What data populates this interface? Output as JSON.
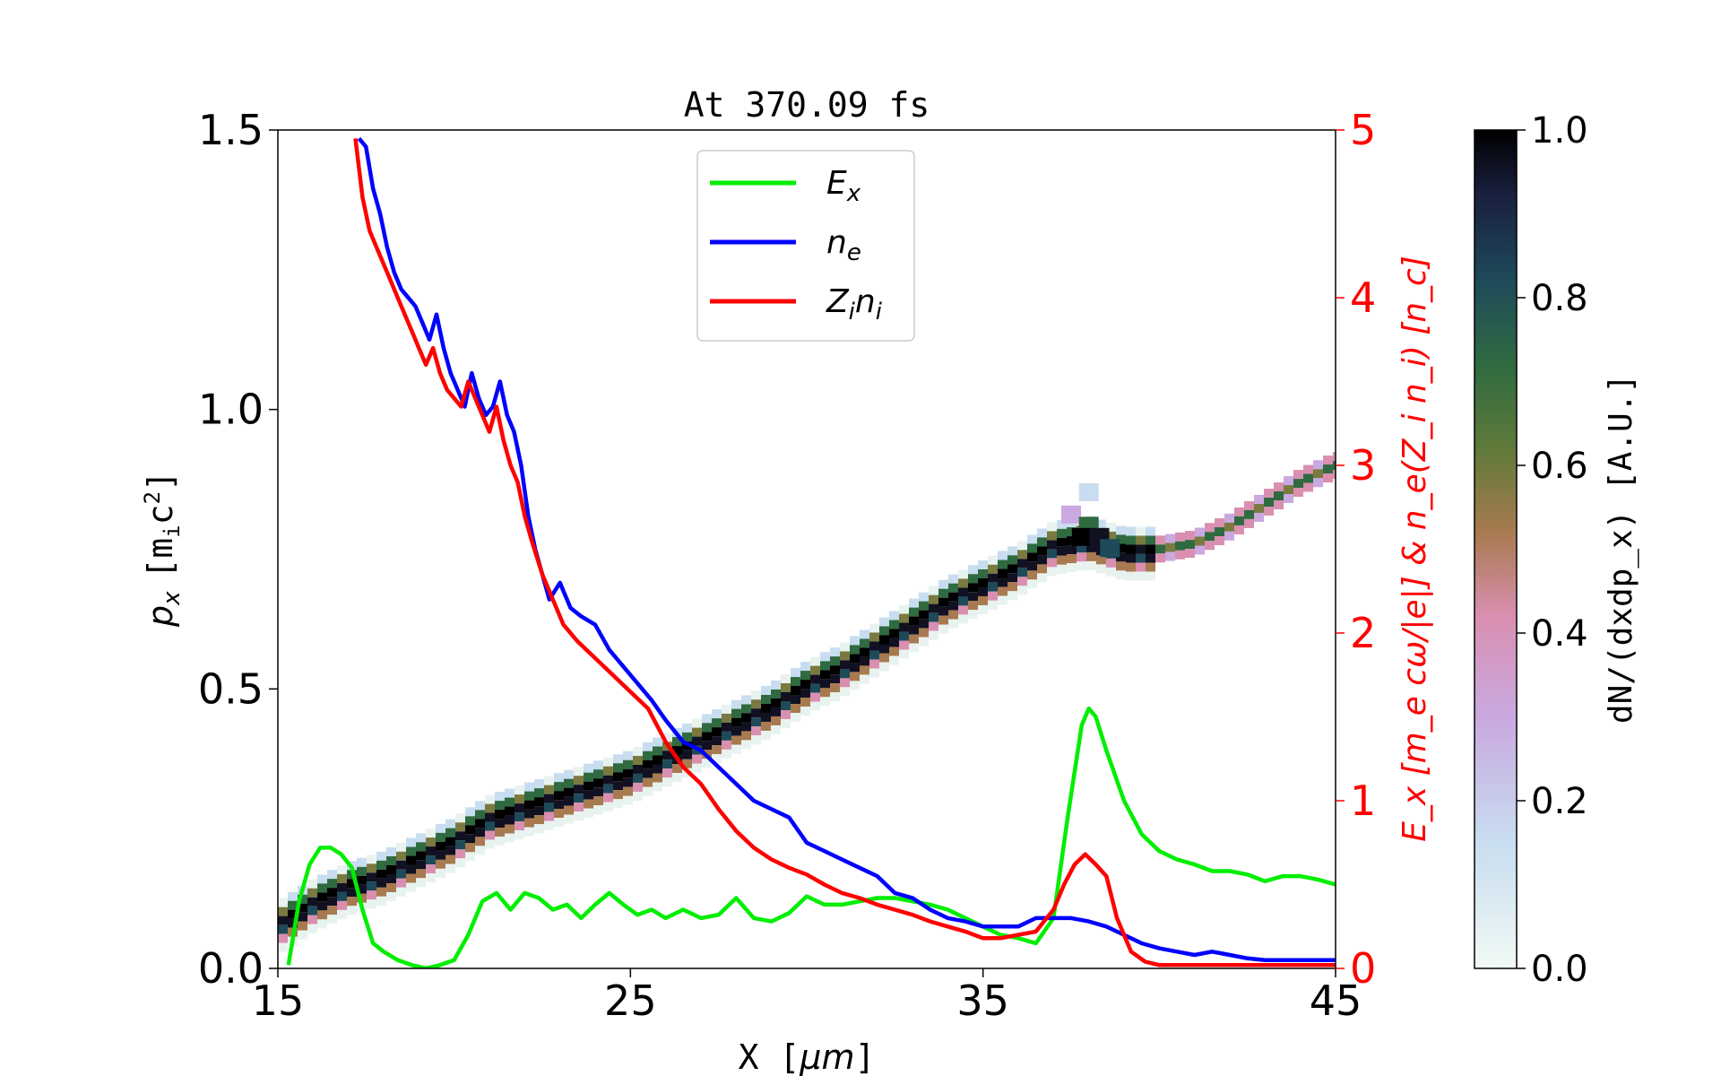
{
  "chart_data": {
    "type": "line",
    "title": "At 370.09 fs",
    "xlabel": "X [μm]",
    "ylabel_left": "p_x [m_i c^2]",
    "ylabel_right": "E_x [m_e cω/|e|] & n_e(Z_i n_i) [n_c]",
    "colorbar_label": "dN/(dxdp_x) [A.U.]",
    "xlim": [
      15,
      45
    ],
    "ylim_left": [
      0,
      1.5
    ],
    "ylim_right": [
      0,
      5
    ],
    "clim": [
      0,
      1
    ],
    "x_ticks": [
      "15",
      "25",
      "35",
      "45"
    ],
    "y_left_ticks": [
      "0.0",
      "0.5",
      "1.0",
      "1.5"
    ],
    "y_right_ticks": [
      "0",
      "1",
      "2",
      "3",
      "4",
      "5"
    ],
    "colorbar_ticks": [
      "0.0",
      "0.2",
      "0.4",
      "0.6",
      "0.8",
      "1.0"
    ],
    "legend_position": "top-center",
    "colors": {
      "E_x": "#00ee00",
      "n_e": "#0000ff",
      "Z_i n_i": "#ff0000",
      "right_axis": "#ff0000"
    },
    "phase_space": [
      {
        "x": 15.0,
        "p": 0.08
      },
      {
        "x": 16.0,
        "p": 0.12
      },
      {
        "x": 17.0,
        "p": 0.15
      },
      {
        "x": 18.0,
        "p": 0.17
      },
      {
        "x": 19.0,
        "p": 0.2
      },
      {
        "x": 20.0,
        "p": 0.23
      },
      {
        "x": 21.0,
        "p": 0.27
      },
      {
        "x": 22.0,
        "p": 0.29
      },
      {
        "x": 23.0,
        "p": 0.31
      },
      {
        "x": 24.0,
        "p": 0.33
      },
      {
        "x": 25.0,
        "p": 0.35
      },
      {
        "x": 26.0,
        "p": 0.38
      },
      {
        "x": 27.0,
        "p": 0.41
      },
      {
        "x": 28.0,
        "p": 0.44
      },
      {
        "x": 29.0,
        "p": 0.47
      },
      {
        "x": 30.0,
        "p": 0.51
      },
      {
        "x": 31.0,
        "p": 0.54
      },
      {
        "x": 32.0,
        "p": 0.58
      },
      {
        "x": 33.0,
        "p": 0.62
      },
      {
        "x": 34.0,
        "p": 0.66
      },
      {
        "x": 35.0,
        "p": 0.69
      },
      {
        "x": 36.0,
        "p": 0.72
      },
      {
        "x": 37.0,
        "p": 0.76
      },
      {
        "x": 38.0,
        "p": 0.77
      },
      {
        "x": 39.0,
        "p": 0.75
      },
      {
        "x": 40.0,
        "p": 0.75
      },
      {
        "x": 41.0,
        "p": 0.76
      },
      {
        "x": 42.0,
        "p": 0.79
      },
      {
        "x": 43.0,
        "p": 0.83
      },
      {
        "x": 44.0,
        "p": 0.87
      },
      {
        "x": 45.0,
        "p": 0.9
      }
    ],
    "series": [
      {
        "name": "E_x",
        "x": [
          15.3,
          15.6,
          15.9,
          16.2,
          16.5,
          16.8,
          17.1,
          17.4,
          17.7,
          18.0,
          18.4,
          18.8,
          19.2,
          19.6,
          20.0,
          20.4,
          20.8,
          21.2,
          21.6,
          22.0,
          22.4,
          22.8,
          23.2,
          23.6,
          24.0,
          24.4,
          24.8,
          25.2,
          25.6,
          26.0,
          26.5,
          27.0,
          27.5,
          28.0,
          28.5,
          29.0,
          29.5,
          30.0,
          30.5,
          31.0,
          31.5,
          32.0,
          32.5,
          33.0,
          33.5,
          34.0,
          34.5,
          35.0,
          35.5,
          36.0,
          36.5,
          37.0,
          37.4,
          37.8,
          38.0,
          38.2,
          38.5,
          39.0,
          39.5,
          40.0,
          40.5,
          41.0,
          41.5,
          42.0,
          42.5,
          43.0,
          43.5,
          44.0,
          44.5,
          45.0
        ],
        "y": [
          0.02,
          0.4,
          0.62,
          0.72,
          0.72,
          0.68,
          0.6,
          0.35,
          0.15,
          0.1,
          0.05,
          0.02,
          0.0,
          0.02,
          0.05,
          0.2,
          0.4,
          0.45,
          0.35,
          0.45,
          0.42,
          0.35,
          0.38,
          0.3,
          0.38,
          0.45,
          0.38,
          0.32,
          0.35,
          0.3,
          0.35,
          0.3,
          0.32,
          0.42,
          0.3,
          0.28,
          0.33,
          0.43,
          0.38,
          0.38,
          0.4,
          0.42,
          0.42,
          0.4,
          0.38,
          0.35,
          0.3,
          0.25,
          0.2,
          0.18,
          0.15,
          0.3,
          0.9,
          1.45,
          1.55,
          1.5,
          1.3,
          1.0,
          0.8,
          0.7,
          0.65,
          0.62,
          0.58,
          0.58,
          0.56,
          0.52,
          0.55,
          0.55,
          0.53,
          0.5
        ]
      },
      {
        "name": "n_e",
        "x": [
          17.3,
          17.5,
          17.7,
          17.9,
          18.1,
          18.3,
          18.5,
          18.7,
          18.9,
          19.1,
          19.3,
          19.5,
          19.7,
          19.9,
          20.1,
          20.3,
          20.5,
          20.7,
          20.9,
          21.1,
          21.3,
          21.5,
          21.7,
          21.9,
          22.1,
          22.3,
          22.5,
          22.7,
          23.0,
          23.3,
          23.6,
          24.0,
          24.4,
          24.8,
          25.2,
          25.6,
          26.0,
          26.5,
          27.0,
          27.5,
          28.0,
          28.5,
          29.0,
          29.5,
          30.0,
          30.5,
          31.0,
          31.5,
          32.0,
          32.5,
          33.0,
          33.5,
          34.0,
          34.5,
          35.0,
          35.5,
          36.0,
          36.5,
          37.0,
          37.5,
          38.0,
          38.5,
          39.0,
          39.5,
          40.0,
          40.5,
          41.0,
          41.5,
          42.0,
          42.5,
          43.0,
          43.5,
          44.0,
          44.5,
          45.0
        ],
        "y": [
          4.95,
          4.9,
          4.65,
          4.5,
          4.3,
          4.15,
          4.05,
          4.0,
          3.95,
          3.85,
          3.75,
          3.9,
          3.7,
          3.55,
          3.45,
          3.35,
          3.55,
          3.4,
          3.3,
          3.35,
          3.5,
          3.3,
          3.2,
          3.0,
          2.7,
          2.5,
          2.35,
          2.2,
          2.3,
          2.15,
          2.1,
          2.05,
          1.9,
          1.8,
          1.7,
          1.6,
          1.48,
          1.35,
          1.3,
          1.2,
          1.1,
          1.0,
          0.95,
          0.9,
          0.75,
          0.7,
          0.65,
          0.6,
          0.55,
          0.45,
          0.42,
          0.35,
          0.3,
          0.28,
          0.25,
          0.25,
          0.25,
          0.3,
          0.3,
          0.3,
          0.28,
          0.25,
          0.2,
          0.15,
          0.12,
          0.1,
          0.08,
          0.1,
          0.08,
          0.06,
          0.05,
          0.05,
          0.05,
          0.05,
          0.05
        ]
      },
      {
        "name": "Z_i n_i",
        "x": [
          17.2,
          17.4,
          17.6,
          17.8,
          18.0,
          18.2,
          18.4,
          18.6,
          18.8,
          19.0,
          19.2,
          19.4,
          19.6,
          19.8,
          20.0,
          20.2,
          20.4,
          20.6,
          20.8,
          21.0,
          21.2,
          21.4,
          21.6,
          21.8,
          22.0,
          22.2,
          22.5,
          22.8,
          23.1,
          23.5,
          24.0,
          24.5,
          25.0,
          25.5,
          26.0,
          26.5,
          27.0,
          27.5,
          28.0,
          28.5,
          29.0,
          29.5,
          30.0,
          30.5,
          31.0,
          31.5,
          32.0,
          32.5,
          33.0,
          33.5,
          34.0,
          34.5,
          35.0,
          35.5,
          36.0,
          36.5,
          37.0,
          37.3,
          37.6,
          37.9,
          38.2,
          38.5,
          38.8,
          39.2,
          39.6,
          40.0,
          41.0,
          42.0,
          43.0,
          44.0,
          45.0
        ],
        "y": [
          4.95,
          4.6,
          4.4,
          4.3,
          4.2,
          4.1,
          4.0,
          3.9,
          3.8,
          3.7,
          3.6,
          3.7,
          3.55,
          3.45,
          3.4,
          3.35,
          3.5,
          3.4,
          3.3,
          3.2,
          3.35,
          3.15,
          3.0,
          2.9,
          2.7,
          2.55,
          2.35,
          2.2,
          2.05,
          1.95,
          1.85,
          1.75,
          1.65,
          1.55,
          1.35,
          1.2,
          1.1,
          0.95,
          0.82,
          0.72,
          0.65,
          0.6,
          0.56,
          0.5,
          0.45,
          0.42,
          0.38,
          0.35,
          0.32,
          0.28,
          0.25,
          0.22,
          0.18,
          0.18,
          0.2,
          0.22,
          0.35,
          0.5,
          0.62,
          0.68,
          0.62,
          0.55,
          0.3,
          0.1,
          0.04,
          0.02,
          0.02,
          0.02,
          0.02,
          0.02,
          0.02
        ]
      }
    ]
  },
  "labels": {
    "title": "At 370.09 fs",
    "x_axis_unit": "X [",
    "x_axis_mu": "μm",
    "x_axis_close": "]",
    "y_left_p": "p",
    "y_left_sub": "x",
    "y_left_unit": "[m",
    "y_left_unit_sub": "i",
    "y_left_unit_c": "c",
    "y_left_unit_sup": "2",
    "y_left_close": "]",
    "legend_ex_main": "E",
    "legend_ex_sub": "x",
    "legend_ne_main": "n",
    "legend_ne_sub": "e",
    "legend_zn_z": "Z",
    "legend_zn_zsub": "i",
    "legend_zn_n": "n",
    "legend_zn_nsub": "i",
    "right_label": "E_x [m_e cω/|e|] & n_e(Z_i n_i) [n_c]",
    "cbar_label": "dN/(dxdp_x) [A.U.]"
  }
}
